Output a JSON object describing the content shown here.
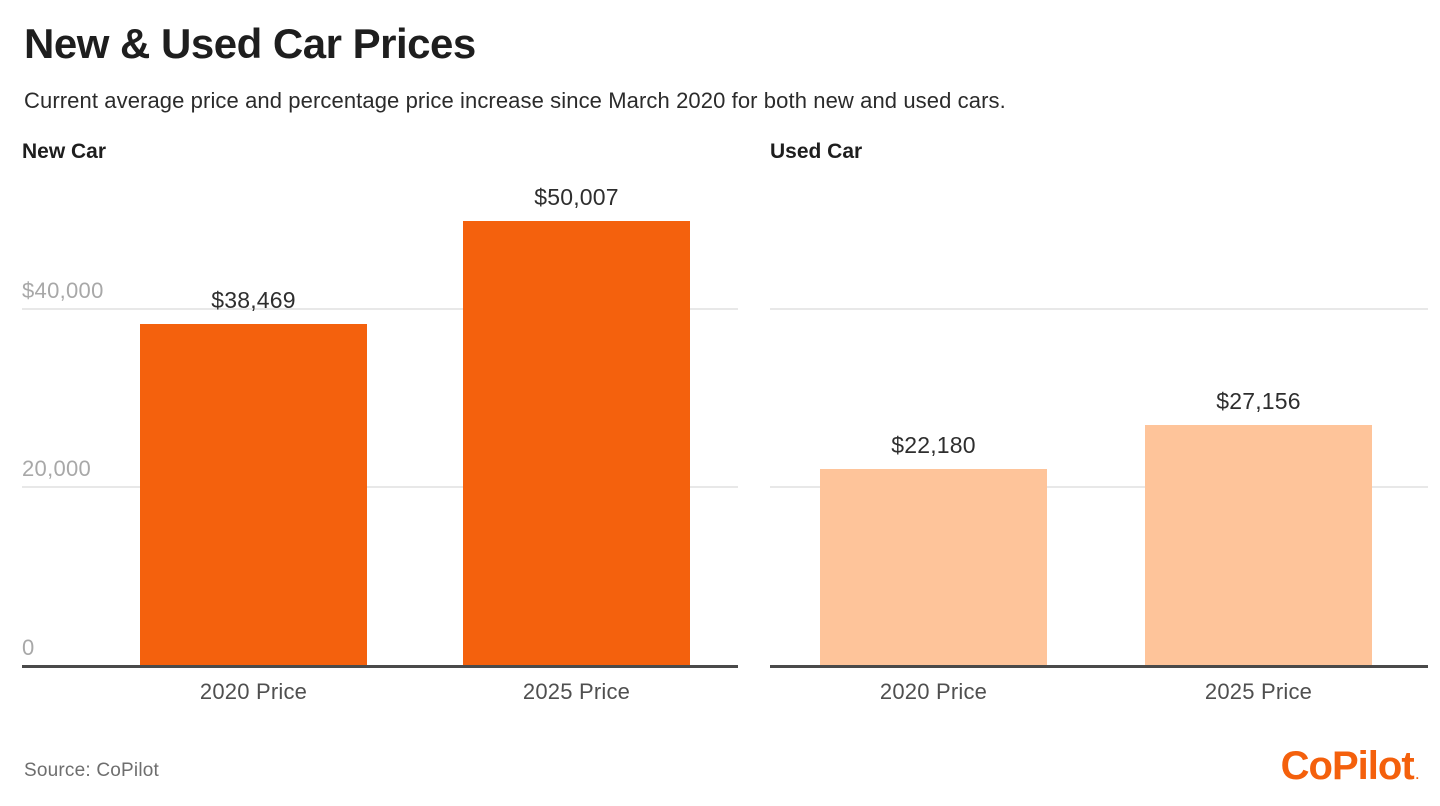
{
  "page": {
    "title": "New & Used Car Prices",
    "subtitle": "Current average price and percentage price increase since March 2020 for both new and used cars.",
    "source_note": "Source: CoPilot",
    "logo_text": "CoPilot"
  },
  "colors": {
    "new_car_bar": "#f4610d",
    "used_car_bar": "#fec49a",
    "logo_orange": "#f4600c",
    "gridline": "#e8e8e8",
    "axis_line": "#4a4a4a",
    "tick_label": "#a8a8a8"
  },
  "chart_data": {
    "type": "bar",
    "categories": [
      "2020 Price",
      "2025 Price"
    ],
    "ylim": [
      0,
      56000
    ],
    "grid": true,
    "y_gridlines": [
      {
        "value": 40000,
        "label": "$40,000"
      },
      {
        "value": 20000,
        "label": "20,000"
      },
      {
        "value": 0,
        "label": "0"
      }
    ],
    "charts": [
      {
        "title": "New Car",
        "color_key": "new_car_bar",
        "show_tick_labels": true,
        "values": [
          38469,
          50007
        ],
        "value_labels": [
          "$38,469",
          "$50,007"
        ]
      },
      {
        "title": "Used Car",
        "color_key": "used_car_bar",
        "show_tick_labels": false,
        "values": [
          22180,
          27156
        ],
        "value_labels": [
          "$22,180",
          "$27,156"
        ]
      }
    ]
  }
}
